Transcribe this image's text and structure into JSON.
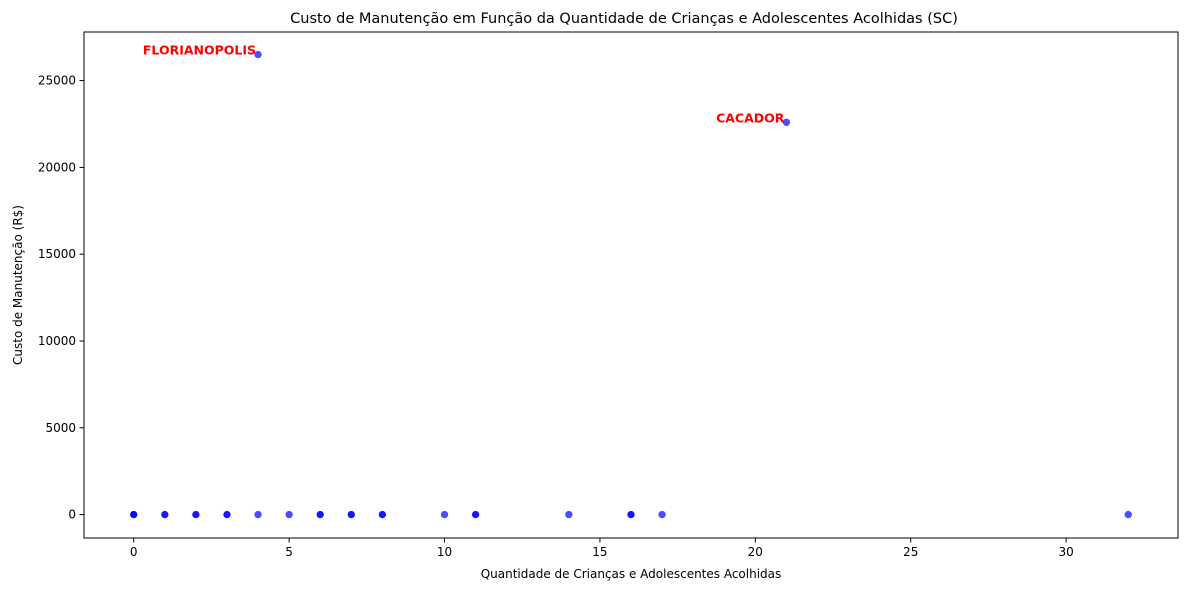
{
  "chart_data": {
    "type": "scatter",
    "title": "Custo de Manutenção em Função da Quantidade de Crianças e Adolescentes Acolhidas (SC)",
    "xlabel": "Quantidade de Crianças e Adolescentes Acolhidas",
    "ylabel": "Custo de Manutenção (R$)",
    "xlim": [
      -1.6,
      33.6
    ],
    "ylim": [
      -1350,
      27800
    ],
    "x_ticks": [
      0,
      5,
      10,
      15,
      20,
      25,
      30
    ],
    "y_ticks": [
      0,
      5000,
      10000,
      15000,
      20000,
      25000
    ],
    "grid": false,
    "point_color": "#0000ff",
    "annotation_color": "#ff0000",
    "points": [
      {
        "x": 0,
        "y": 0
      },
      {
        "x": 0,
        "y": 0
      },
      {
        "x": 0,
        "y": 0
      },
      {
        "x": 1,
        "y": 0
      },
      {
        "x": 1,
        "y": 0
      },
      {
        "x": 2,
        "y": 0
      },
      {
        "x": 2,
        "y": 0
      },
      {
        "x": 3,
        "y": 0
      },
      {
        "x": 3,
        "y": 0
      },
      {
        "x": 4,
        "y": 26500
      },
      {
        "x": 4,
        "y": 0
      },
      {
        "x": 5,
        "y": 0
      },
      {
        "x": 6,
        "y": 0
      },
      {
        "x": 6,
        "y": 0
      },
      {
        "x": 7,
        "y": 0
      },
      {
        "x": 7,
        "y": 0
      },
      {
        "x": 8,
        "y": 0
      },
      {
        "x": 8,
        "y": 0
      },
      {
        "x": 10,
        "y": 0
      },
      {
        "x": 11,
        "y": 0
      },
      {
        "x": 11,
        "y": 0
      },
      {
        "x": 14,
        "y": 0
      },
      {
        "x": 16,
        "y": 0
      },
      {
        "x": 16,
        "y": 0
      },
      {
        "x": 17,
        "y": 0
      },
      {
        "x": 21,
        "y": 22600
      },
      {
        "x": 32,
        "y": 0
      }
    ],
    "annotations": [
      {
        "text": "FLORIANOPOLIS",
        "x": 4,
        "y": 26500
      },
      {
        "text": "CACADOR",
        "x": 21,
        "y": 22600
      }
    ]
  }
}
